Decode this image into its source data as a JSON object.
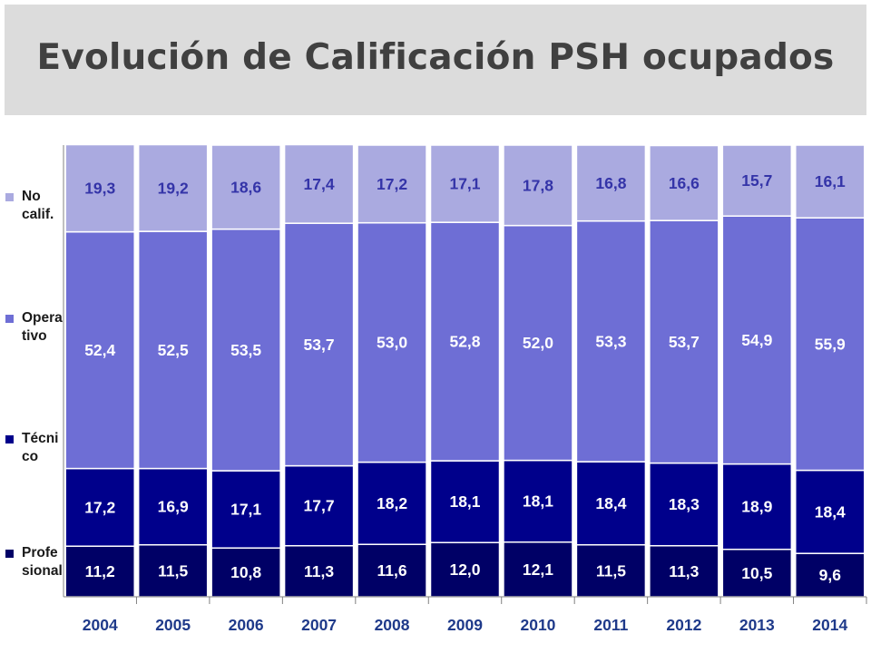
{
  "title": "Evolución de Calificación PSH ocupados",
  "legend": [
    {
      "label": "No\ncalif.",
      "color": "#aaaae0"
    },
    {
      "label": "Opera\ntivo",
      "color": "#6e6ed5"
    },
    {
      "label": "Técni\nco",
      "color": "#00008b"
    },
    {
      "label": "Profe\nsional",
      "color": "#000066"
    }
  ],
  "chart_data": {
    "type": "bar",
    "stacked": true,
    "categories": [
      "2004",
      "2005",
      "2006",
      "2007",
      "2008",
      "2009",
      "2010",
      "2011",
      "2012",
      "2013",
      "2014"
    ],
    "series": [
      {
        "name": "Profe sional",
        "color": "#000066",
        "label_color": "#ffffff",
        "values": [
          11.2,
          11.5,
          10.8,
          11.3,
          11.6,
          12.0,
          12.1,
          11.5,
          11.3,
          10.5,
          9.6
        ],
        "labels": [
          "11,2",
          "11,5",
          "10,8",
          "11,3",
          "11,6",
          "12,0",
          "12,1",
          "11,5",
          "11,3",
          "10,5",
          "9,6"
        ]
      },
      {
        "name": "Técni co",
        "color": "#00008b",
        "label_color": "#ffffff",
        "values": [
          17.2,
          16.9,
          17.1,
          17.7,
          18.2,
          18.1,
          18.1,
          18.4,
          18.3,
          18.9,
          18.4
        ],
        "labels": [
          "17,2",
          "16,9",
          "17,1",
          "17,7",
          "18,2",
          "18,1",
          "18,1",
          "18,4",
          "18,3",
          "18,9",
          "18,4"
        ]
      },
      {
        "name": "Opera tivo",
        "color": "#6e6ed5",
        "label_color": "#ffffff",
        "values": [
          52.4,
          52.5,
          53.5,
          53.7,
          53.0,
          52.8,
          52.0,
          53.3,
          53.7,
          54.9,
          55.9
        ],
        "labels": [
          "52,4",
          "52,5",
          "53,5",
          "53,7",
          "53,0",
          "52,8",
          "52,0",
          "53,3",
          "53,7",
          "54,9",
          "55,9"
        ]
      },
      {
        "name": "No calif.",
        "color": "#aaaae0",
        "label_color": "#3434a8",
        "values": [
          19.3,
          19.2,
          18.6,
          17.4,
          17.2,
          17.1,
          17.8,
          16.8,
          16.6,
          15.7,
          16.1
        ],
        "labels": [
          "19,3",
          "19,2",
          "18,6",
          "17,4",
          "17,2",
          "17,1",
          "17,8",
          "16,8",
          "16,6",
          "15,7",
          "16,1"
        ]
      }
    ],
    "ylim": [
      0,
      100
    ],
    "grid": false,
    "legend_position": "left"
  }
}
